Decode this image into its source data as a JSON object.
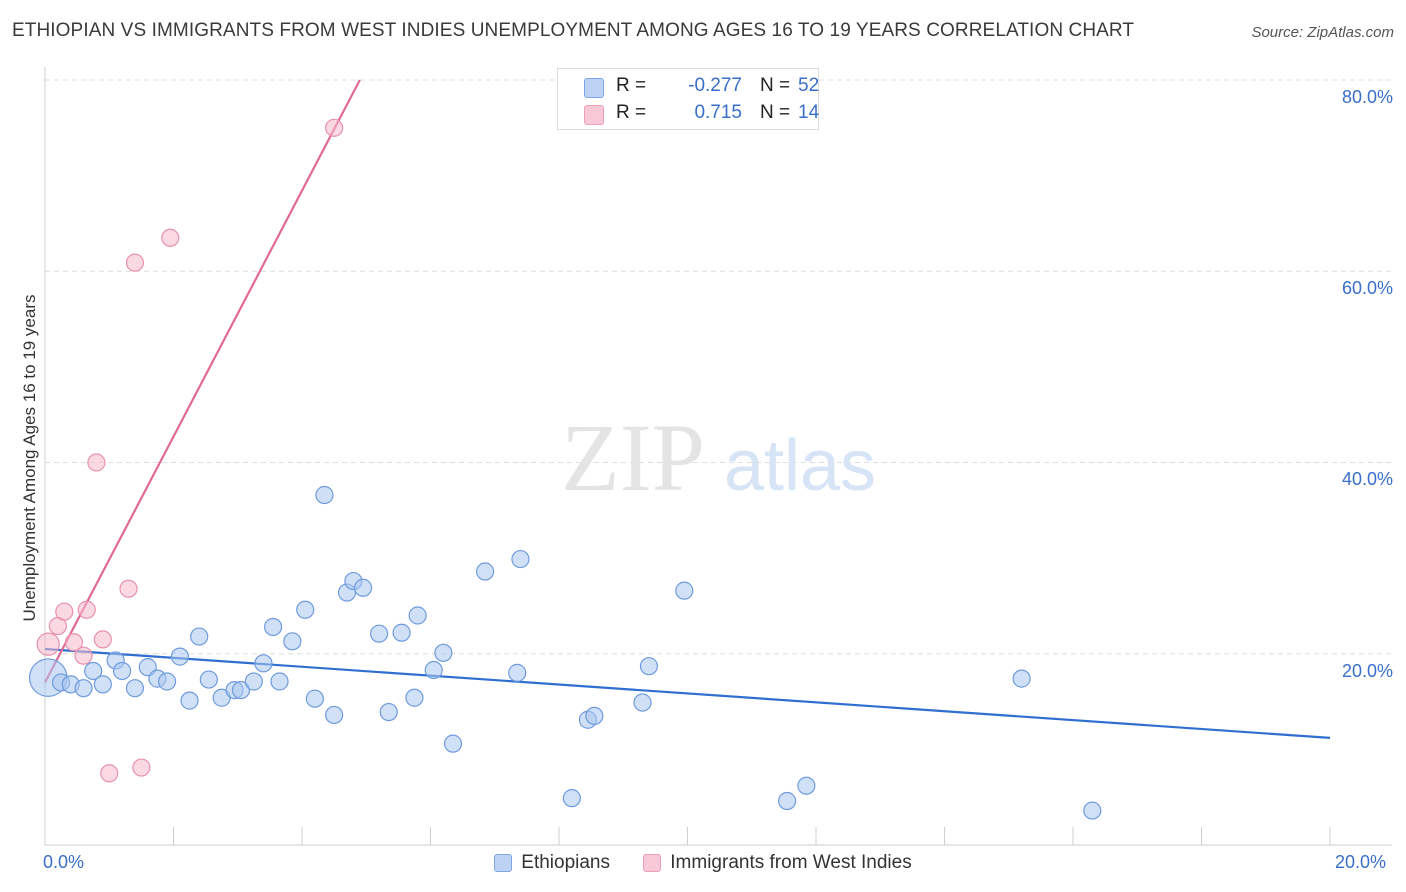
{
  "title": "ETHIOPIAN VS IMMIGRANTS FROM WEST INDIES UNEMPLOYMENT AMONG AGES 16 TO 19 YEARS CORRELATION CHART",
  "source": "Source: ZipAtlas.com",
  "watermark": {
    "zip": "ZIP",
    "atlas": "atlas"
  },
  "stats": {
    "blue": {
      "r_label": "R =",
      "r_value": "-0.277",
      "n_label": "N =",
      "n_value": "52"
    },
    "pink": {
      "r_label": "R =",
      "r_value": "0.715",
      "n_label": "N =",
      "n_value": "14"
    }
  },
  "legend": {
    "ethiopians": "Ethiopians",
    "west_indies": "Immigrants from West Indies"
  },
  "chart_data": {
    "type": "scatter",
    "title": "ETHIOPIAN VS IMMIGRANTS FROM WEST INDIES UNEMPLOYMENT AMONG AGES 16 TO 19 YEARS CORRELATION CHART",
    "xlabel": "",
    "ylabel": "Unemployment Among Ages 16 to 19 years",
    "xlim": [
      0,
      20
    ],
    "ylim": [
      0,
      80
    ],
    "x_tick_labels": [
      "0.0%",
      "20.0%"
    ],
    "y_ticks": [
      20,
      40,
      60,
      80
    ],
    "y_tick_labels": [
      "20.0%",
      "40.0%",
      "60.0%",
      "80.0%"
    ],
    "colors": {
      "blue_fill": "#a9c7f0",
      "blue_stroke": "#6f9bde",
      "blue_line": "#2f6fd0",
      "pink_fill": "#f7b9cc",
      "pink_stroke": "#e891ad",
      "pink_line": "#e06a95"
    },
    "series": [
      {
        "name": "Ethiopians",
        "color": "blue",
        "trend": {
          "x": [
            0,
            20
          ],
          "y": [
            20.5,
            11.2
          ]
        },
        "points": [
          [
            0.05,
            17.5,
            2.2
          ],
          [
            0.25,
            17.0,
            1
          ],
          [
            0.4,
            16.8,
            1
          ],
          [
            0.6,
            16.4,
            1
          ],
          [
            0.75,
            18.2,
            1
          ],
          [
            0.9,
            16.8,
            1
          ],
          [
            1.1,
            19.3,
            1
          ],
          [
            1.2,
            18.2,
            1
          ],
          [
            1.4,
            16.4,
            1
          ],
          [
            1.6,
            18.6,
            1
          ],
          [
            1.75,
            17.4,
            1
          ],
          [
            1.9,
            17.1,
            1
          ],
          [
            2.1,
            19.7,
            1
          ],
          [
            2.25,
            15.1,
            1
          ],
          [
            2.4,
            21.8,
            1
          ],
          [
            2.55,
            17.3,
            1
          ],
          [
            2.75,
            15.4,
            1
          ],
          [
            2.95,
            16.2,
            1
          ],
          [
            3.05,
            16.2,
            1
          ],
          [
            3.25,
            17.1,
            1
          ],
          [
            3.4,
            19.0,
            1
          ],
          [
            3.55,
            22.8,
            1
          ],
          [
            3.65,
            17.1,
            1
          ],
          [
            3.85,
            21.3,
            1
          ],
          [
            4.05,
            24.6,
            1
          ],
          [
            4.2,
            15.3,
            1
          ],
          [
            4.35,
            36.6,
            1
          ],
          [
            4.5,
            13.6,
            1
          ],
          [
            4.7,
            26.4,
            1
          ],
          [
            4.8,
            27.6,
            1
          ],
          [
            4.95,
            26.9,
            1
          ],
          [
            5.2,
            22.1,
            1
          ],
          [
            5.35,
            13.9,
            1
          ],
          [
            5.55,
            22.2,
            1
          ],
          [
            5.75,
            15.4,
            1
          ],
          [
            5.8,
            24.0,
            1
          ],
          [
            6.05,
            18.3,
            1
          ],
          [
            6.2,
            20.1,
            1
          ],
          [
            6.35,
            10.6,
            1
          ],
          [
            6.85,
            28.6,
            1
          ],
          [
            7.35,
            18.0,
            1
          ],
          [
            7.4,
            29.9,
            1
          ],
          [
            8.2,
            4.9,
            1
          ],
          [
            8.45,
            13.1,
            1
          ],
          [
            8.55,
            13.5,
            1
          ],
          [
            9.3,
            14.9,
            1
          ],
          [
            9.4,
            18.7,
            1
          ],
          [
            9.95,
            26.6,
            1
          ],
          [
            11.55,
            4.6,
            1
          ],
          [
            11.85,
            6.2,
            1
          ],
          [
            15.2,
            17.4,
            1
          ],
          [
            16.3,
            3.6,
            1
          ]
        ]
      },
      {
        "name": "Immigrants from West Indies",
        "color": "pink",
        "trend": {
          "x": [
            0,
            4.9
          ],
          "y": [
            17.0,
            80.0
          ]
        },
        "points": [
          [
            0.05,
            21.0,
            1.3
          ],
          [
            0.2,
            22.9,
            1
          ],
          [
            0.3,
            24.4,
            1
          ],
          [
            0.45,
            21.2,
            1
          ],
          [
            0.6,
            19.8,
            1
          ],
          [
            0.65,
            24.6,
            1
          ],
          [
            0.8,
            40.0,
            1
          ],
          [
            0.9,
            21.5,
            1
          ],
          [
            1.0,
            7.5,
            1
          ],
          [
            1.3,
            26.8,
            1
          ],
          [
            1.4,
            60.9,
            1
          ],
          [
            1.5,
            8.1,
            1
          ],
          [
            1.95,
            63.5,
            1
          ],
          [
            4.5,
            75.0,
            1
          ]
        ]
      }
    ]
  }
}
